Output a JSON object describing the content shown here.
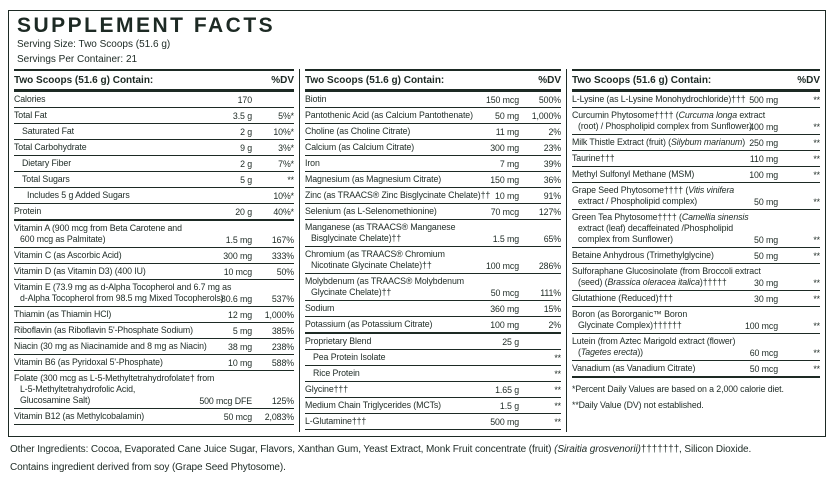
{
  "header": {
    "title": "SUPPLEMENT FACTS",
    "serving_size": "Serving Size: Two Scoops (51.6 g)",
    "servings_per_container": "Servings Per Container: 21"
  },
  "colors": {
    "ink": "#1d2a24",
    "background": "#ffffff"
  },
  "columns": [
    {
      "header": {
        "label": "Two Scoops (51.6 g) Contain:",
        "dv": "%DV"
      },
      "rows": [
        {
          "lines": [
            "Calories"
          ],
          "amount": "170",
          "dv": ""
        },
        {
          "lines": [
            "Total Fat"
          ],
          "amount": "3.5 g",
          "dv": "5%*"
        },
        {
          "lines": [
            "Saturated Fat"
          ],
          "indent": 1,
          "amount": "2 g",
          "dv": "10%*"
        },
        {
          "lines": [
            "Total Carbohydrate"
          ],
          "amount": "9 g",
          "dv": "3%*"
        },
        {
          "lines": [
            "Dietary Fiber"
          ],
          "indent": 1,
          "amount": "2 g",
          "dv": "7%*"
        },
        {
          "lines": [
            "Total Sugars"
          ],
          "indent": 1,
          "amount": "5 g",
          "dv": "**"
        },
        {
          "lines": [
            "Includes 5 g Added Sugars"
          ],
          "indent": 2,
          "amount": "",
          "dv": "10%*"
        },
        {
          "lines": [
            "Protein"
          ],
          "amount": "20 g",
          "dv": "40%*",
          "rule": "thick"
        },
        {
          "lines": [
            "Vitamin A (900 mcg from Beta Carotene and",
            "600 mcg as Palmitate)"
          ],
          "amount": "1.5 mg",
          "dv": "167%"
        },
        {
          "lines": [
            "Vitamin C (as Ascorbic Acid)"
          ],
          "amount": "300 mg",
          "dv": "333%"
        },
        {
          "lines": [
            "Vitamin D (as Vitamin D3) (400 IU)"
          ],
          "amount": "10 mcg",
          "dv": "50%"
        },
        {
          "lines": [
            "Vitamin E (73.9 mg as d-Alpha Tocopherol and 6.7 mg as",
            "d-Alpha Tocopherol from 98.5 mg Mixed Tocopherols)"
          ],
          "amount": "80.6 mg",
          "dv": "537%"
        },
        {
          "lines": [
            "Thiamin (as Thiamin HCl)"
          ],
          "amount": "12 mg",
          "dv": "1,000%"
        },
        {
          "lines": [
            "Riboflavin (as Riboflavin 5'-Phosphate Sodium)"
          ],
          "amount": "5 mg",
          "dv": "385%"
        },
        {
          "lines": [
            "Niacin (30 mg as Niacinamide and 8 mg as Niacin)"
          ],
          "amount": "38 mg",
          "dv": "238%"
        },
        {
          "lines": [
            "Vitamin B6 (as Pyridoxal 5'-Phosphate)"
          ],
          "amount": "10 mg",
          "dv": "588%"
        },
        {
          "lines": [
            "Folate (300 mcg as L-5-Methyltetrahydrofolate† from",
            "L-5-Methyltetrahydrofolic Acid,",
            "Glucosamine Salt)"
          ],
          "amount": "500 mcg DFE",
          "dv": "125%"
        },
        {
          "lines": [
            "Vitamin B12 (as Methylcobalamin)"
          ],
          "amount": "50 mcg",
          "dv": "2,083%"
        }
      ],
      "footnotes": []
    },
    {
      "header": {
        "label": "Two Scoops (51.6 g) Contain:",
        "dv": "%DV"
      },
      "rows": [
        {
          "lines": [
            "Biotin"
          ],
          "amount": "150 mcg",
          "dv": "500%"
        },
        {
          "lines": [
            "Pantothenic Acid (as Calcium Pantothenate)"
          ],
          "amount": "50 mg",
          "dv": "1,000%"
        },
        {
          "lines": [
            "Choline (as Choline Citrate)"
          ],
          "amount": "11 mg",
          "dv": "2%"
        },
        {
          "lines": [
            "Calcium (as Calcium Citrate)"
          ],
          "amount": "300 mg",
          "dv": "23%"
        },
        {
          "lines": [
            "Iron"
          ],
          "amount": "7 mg",
          "dv": "39%"
        },
        {
          "lines": [
            "Magnesium (as Magnesium Citrate)"
          ],
          "amount": "150 mg",
          "dv": "36%"
        },
        {
          "lines": [
            "Zinc (as TRAACS® Zinc Bisglycinate Chelate)††"
          ],
          "amount": "10 mg",
          "dv": "91%"
        },
        {
          "lines": [
            "Selenium (as L-Selenomethionine)"
          ],
          "amount": "70 mcg",
          "dv": "127%"
        },
        {
          "lines": [
            "Manganese (as TRAACS® Manganese",
            "Bisglycinate Chelate)††"
          ],
          "amount": "1.5 mg",
          "dv": "65%"
        },
        {
          "lines": [
            "Chromium (as TRAACS® Chromium",
            "Nicotinate Glycinate Chelate)††"
          ],
          "amount": "100 mcg",
          "dv": "286%"
        },
        {
          "lines": [
            "Molybdenum (as TRAACS® Molybdenum",
            "Glycinate Chelate)††"
          ],
          "amount": "50 mcg",
          "dv": "111%"
        },
        {
          "lines": [
            "Sodium"
          ],
          "amount": "360 mg",
          "dv": "15%"
        },
        {
          "lines": [
            "Potassium (as Potassium Citrate)"
          ],
          "amount": "100 mg",
          "dv": "2%",
          "rule": "thick"
        },
        {
          "lines": [
            "Proprietary Blend"
          ],
          "amount": "25 g",
          "dv": ""
        },
        {
          "lines": [
            "Pea Protein Isolate"
          ],
          "indent": 1,
          "amount": "",
          "dv": "**"
        },
        {
          "lines": [
            "Rice Protein"
          ],
          "indent": 1,
          "amount": "",
          "dv": "**"
        },
        {
          "lines": [
            "Glycine†††"
          ],
          "amount": "1.65 g",
          "dv": "**"
        },
        {
          "lines": [
            "Medium Chain Triglycerides (MCTs)"
          ],
          "amount": "1.5 g",
          "dv": "**"
        },
        {
          "lines": [
            "L-Glutamine†††"
          ],
          "amount": "500 mg",
          "dv": "**"
        }
      ],
      "footnotes": []
    },
    {
      "header": {
        "label": "Two Scoops (51.6 g) Contain:",
        "dv": "%DV"
      },
      "rows": [
        {
          "lines": [
            "L-Lysine (as L-Lysine Monohydrochloride)†††"
          ],
          "amount": "500 mg",
          "dv": "**"
        },
        {
          "lines": [
            "Curcumin Phytosome†††† (|Curcuma longa| extract",
            "(root) / Phospholipid complex from Sunflower)"
          ],
          "amount": "400 mg",
          "dv": "**"
        },
        {
          "lines": [
            "Milk Thistle Extract (fruit) (|Silybum marianum|)"
          ],
          "amount": "250 mg",
          "dv": "**"
        },
        {
          "lines": [
            "Taurine†††"
          ],
          "amount": "110 mg",
          "dv": "**"
        },
        {
          "lines": [
            "Methyl Sulfonyl Methane (MSM)"
          ],
          "amount": "100 mg",
          "dv": "**"
        },
        {
          "lines": [
            "Grape Seed Phytosome†††† (|Vitis vinifera|",
            "extract / Phospholipid complex)"
          ],
          "amount": "50 mg",
          "dv": "**"
        },
        {
          "lines": [
            "Green Tea Phytosome†††† (|Camellia sinensis|",
            "extract (leaf) decaffeinated /Phospholipid",
            "complex from Sunflower)"
          ],
          "amount": "50 mg",
          "dv": "**"
        },
        {
          "lines": [
            "Betaine Anhydrous (Trimethylglycine)"
          ],
          "amount": "50 mg",
          "dv": "**"
        },
        {
          "lines": [
            "Sulforaphane Glucosinolate (from Broccoli extract",
            "(seed) (|Brassica oleracea italica|)†††††"
          ],
          "amount": "30 mg",
          "dv": "**"
        },
        {
          "lines": [
            "Glutathione (Reduced)†††"
          ],
          "amount": "30 mg",
          "dv": "**"
        },
        {
          "lines": [
            "Boron (as Bororganic™ Boron",
            "Glycinate Complex)††††††"
          ],
          "amount": "100 mcg",
          "dv": "**"
        },
        {
          "lines": [
            "Lutein (from Aztec Marigold extract (flower)",
            "(|Tagetes erecta|))"
          ],
          "amount": "60 mcg",
          "dv": "**"
        },
        {
          "lines": [
            "Vanadium (as Vanadium Citrate)"
          ],
          "amount": "50 mcg",
          "dv": "**",
          "rule": "thick"
        }
      ],
      "footnotes": [
        "*Percent Daily Values are based on a 2,000 calorie diet.",
        "**Daily Value (DV) not established."
      ]
    }
  ],
  "footer": {
    "other_ingredients": "Other Ingredients: Cocoa, Evaporated Cane Juice Sugar, Flavors, Xanthan Gum, Yeast Extract, Monk Fruit concentrate (fruit) |(Siraitia grosvenorii)|†††††††, Silicon Dioxide.",
    "contains": "Contains ingredient derived from soy (Grape Seed Phytosome)."
  }
}
